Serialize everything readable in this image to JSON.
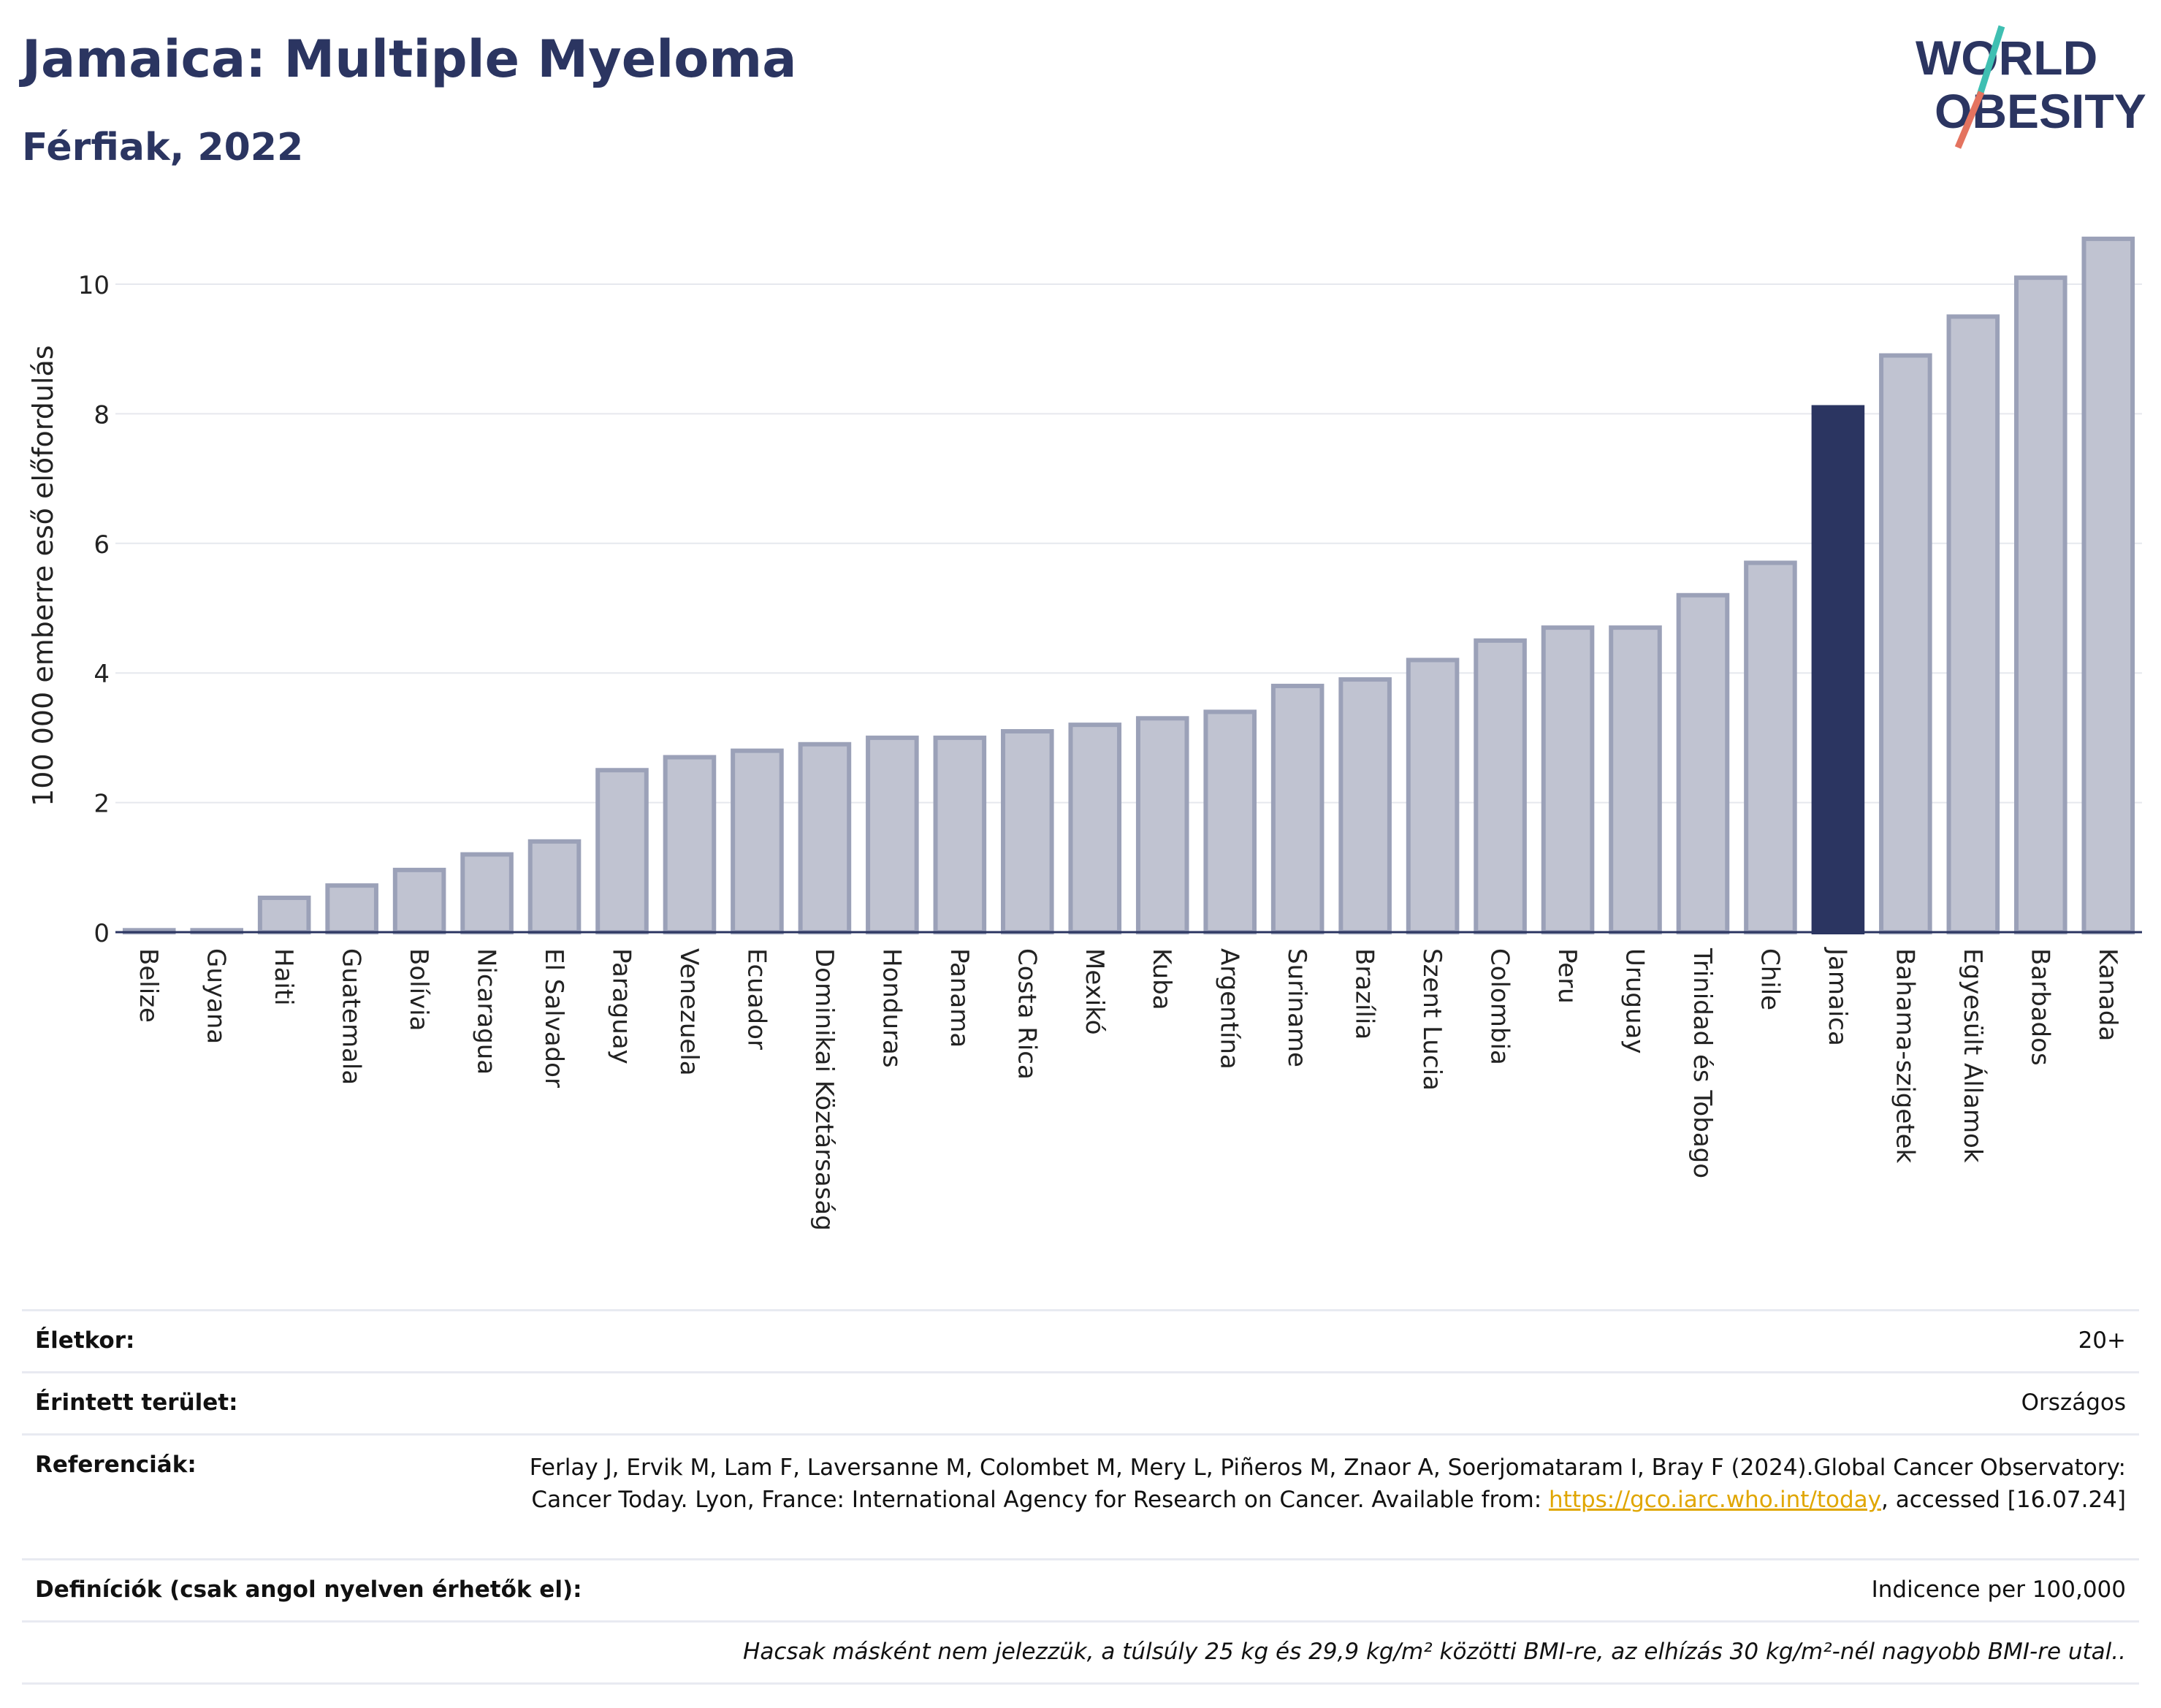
{
  "header": {
    "title": "Jamaica: Multiple Myeloma",
    "subtitle": "Férfiak, 2022",
    "logo_line1": "WORLD",
    "logo_line2": "OBESITY"
  },
  "colors": {
    "bar": "#c0c3d1",
    "bar_border": "#9ba1b8",
    "highlight": "#2b3561",
    "grid": "#e6e8ee",
    "logo_slash_top": "#3fbfb2",
    "logo_slash_bottom": "#e4735f"
  },
  "chart_data": {
    "type": "bar",
    "ylabel": "100 000 emberre eső előfordulás",
    "ylim": [
      0,
      11
    ],
    "yticks": [
      0,
      2,
      4,
      6,
      8,
      10
    ],
    "grid": true,
    "highlight": "Jamaica",
    "categories": [
      "Belize",
      "Guyana",
      "Haiti",
      "Guatemala",
      "Bolívia",
      "Nicaragua",
      "El Salvador",
      "Paraguay",
      "Venezuela",
      "Ecuador",
      "Dominikai Köztársaság",
      "Honduras",
      "Panama",
      "Costa Rica",
      "Mexikó",
      "Kuba",
      "Argentína",
      "Suriname",
      "Brazília",
      "Szent Lucia",
      "Colombia",
      "Peru",
      "Uruguay",
      "Trinidad és Tobago",
      "Chile",
      "Jamaica",
      "Bahama-szigetek",
      "Egyesült Államok",
      "Barbados",
      "Kanada"
    ],
    "values": [
      0.03,
      0.03,
      0.53,
      0.72,
      0.96,
      1.2,
      1.4,
      2.5,
      2.7,
      2.8,
      2.9,
      3.0,
      3.0,
      3.1,
      3.2,
      3.3,
      3.4,
      3.8,
      3.9,
      4.2,
      4.5,
      4.7,
      4.7,
      5.2,
      5.7,
      8.1,
      8.9,
      9.5,
      10.1,
      10.7
    ]
  },
  "info": {
    "age_label": "Életkor:",
    "age_value": "20+",
    "area_label": "Érintett terület:",
    "area_value": "Országos",
    "ref_label": "Referenciák:",
    "ref_text_1": "Ferlay J, Ervik M, Lam F, Laversanne M, Colombet M, Mery L, Piñeros M, Znaor A, Soerjomataram I, Bray F (2024).Global Cancer Observatory: Cancer Today. Lyon, France: International Agency for Research on Cancer. Available from: ",
    "ref_link": "https://gco.iarc.who.int/today",
    "ref_text_2": ", accessed [16.07.24]",
    "def_label": "Definíciók (csak angol nyelven érhetők el):",
    "def_value": "Indicence per 100,000",
    "note": "Hacsak másként nem jelezzük, a túlsúly 25 kg és 29,9 kg/m² közötti BMI-re, az elhízás 30 kg/m²-nél nagyobb BMI-re utal.."
  }
}
